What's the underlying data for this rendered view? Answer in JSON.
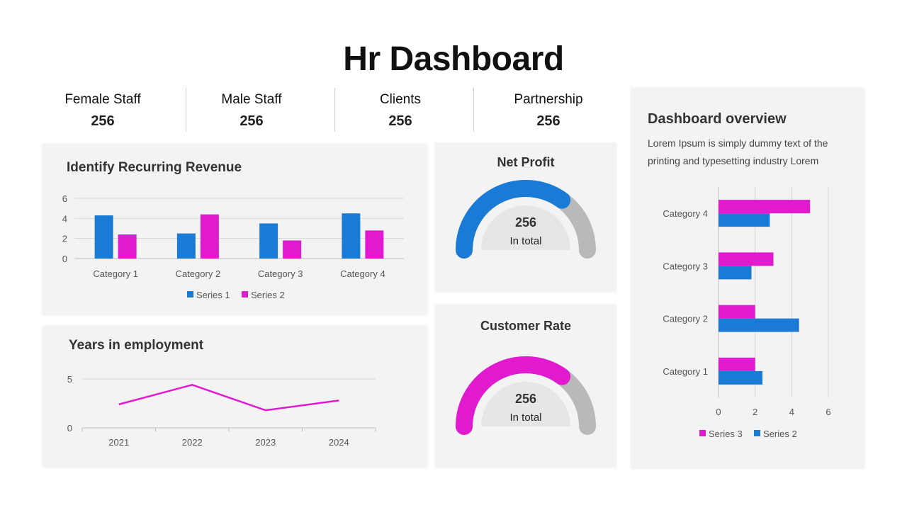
{
  "page": {
    "title": "Hr Dashboard"
  },
  "stats": [
    {
      "label": "Female Staff",
      "value": "256"
    },
    {
      "label": "Male Staff",
      "value": "256"
    },
    {
      "label": "Clients",
      "value": "256"
    },
    {
      "label": "Partnership",
      "value": "256"
    }
  ],
  "revenue": {
    "title": "Identify Recurring Revenue"
  },
  "employment": {
    "title": "Years in employment"
  },
  "net_profit": {
    "title": "Net Profit",
    "value": "256",
    "sub": "In total",
    "fill_percent": 0.7,
    "color": "#1a7bd6"
  },
  "customer_rate": {
    "title": "Customer Rate",
    "value": "256",
    "sub": "In total",
    "fill_percent": 0.7,
    "color": "#e11ad0"
  },
  "overview": {
    "title": "Dashboard overview",
    "text": "Lorem Ipsum is simply dummy text of the printing and typesetting industry Lorem"
  },
  "colors": {
    "blue": "#1a7bd6",
    "magenta": "#e11ad0",
    "gauge_track": "#b9b9b9"
  },
  "chart_data": [
    {
      "type": "bar",
      "title": "Identify Recurring Revenue",
      "categories": [
        "Category 1",
        "Category 2",
        "Category 3",
        "Category 4"
      ],
      "series": [
        {
          "name": "Series 1",
          "values": [
            4.3,
            2.5,
            3.5,
            4.5
          ],
          "color": "#1a7bd6"
        },
        {
          "name": "Series 2",
          "values": [
            2.4,
            4.4,
            1.8,
            2.8
          ],
          "color": "#e11ad0"
        }
      ],
      "ylim": [
        0,
        6
      ],
      "yticks": [
        "0",
        "2",
        "4",
        "6"
      ],
      "grid": true,
      "legend": "bottom"
    },
    {
      "type": "line",
      "title": "Years in employment",
      "x": [
        "2021",
        "2022",
        "2023",
        "2024"
      ],
      "series": [
        {
          "values": [
            2.4,
            4.4,
            1.8,
            2.8
          ],
          "color": "#e11ad0"
        }
      ],
      "ylim": [
        0,
        5
      ],
      "yticks": [
        "0",
        "5"
      ],
      "grid": true
    },
    {
      "type": "bar",
      "orientation": "horizontal",
      "categories": [
        "Category 1",
        "Category 2",
        "Category 3",
        "Category 4"
      ],
      "series": [
        {
          "name": "Series 3",
          "values": [
            2,
            2,
            3,
            5
          ],
          "color": "#e11ad0"
        },
        {
          "name": "Series 2",
          "values": [
            2.4,
            4.4,
            1.8,
            2.8
          ],
          "color": "#1a7bd6"
        }
      ],
      "xlim": [
        0,
        6
      ],
      "xticks": [
        "0",
        "2",
        "4",
        "6"
      ],
      "grid": true,
      "legend": "bottom"
    }
  ]
}
